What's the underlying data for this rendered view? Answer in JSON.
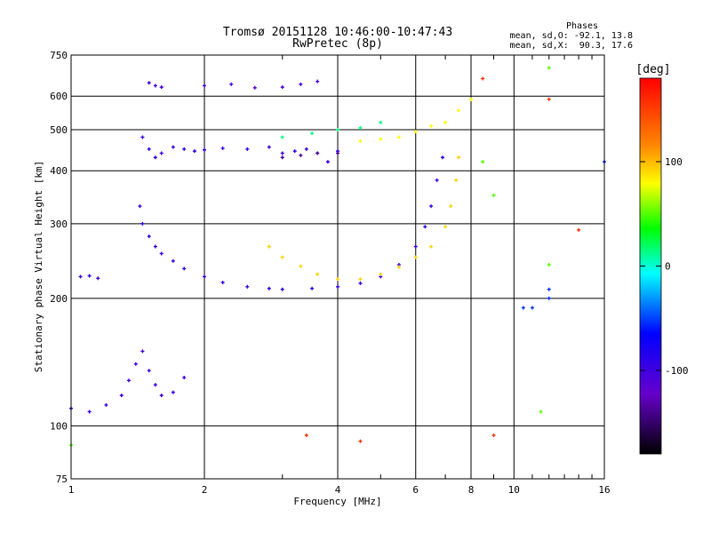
{
  "chart_data": {
    "type": "scatter",
    "title": "Tromsø 20151128 10:46:00-10:47:43",
    "subtitle": "RwPretec (8p)",
    "xlabel": "Frequency [MHz]",
    "ylabel": "Stationary phase Virtual Height [km]",
    "x_scale": "log",
    "y_scale": "log",
    "xlim": [
      1,
      16
    ],
    "ylim": [
      75,
      750
    ],
    "x_ticks": [
      1,
      2,
      4,
      6,
      8,
      10,
      16
    ],
    "x_tick_labels": [
      "1",
      "2",
      "4",
      "6",
      "8",
      "10",
      "16"
    ],
    "y_ticks": [
      75,
      100,
      200,
      300,
      400,
      500,
      600,
      750
    ],
    "y_tick_labels": [
      "75",
      "100",
      "200",
      "300",
      "400",
      "500",
      "600",
      "750"
    ],
    "grid": true,
    "phase_stats": {
      "heading": "Phases",
      "line_o": "mean, sd,O: -92.1, 13.8",
      "line_x": "mean, sd,X:  90.3, 17.6"
    },
    "colorbar": {
      "label": "[deg]",
      "range": [
        -180,
        180
      ],
      "ticks": [
        100,
        0,
        -100
      ],
      "tick_labels": [
        "100",
        "0",
        "-100"
      ]
    },
    "series": [
      {
        "phase": -100,
        "points": [
          [
            1.45,
            480
          ],
          [
            1.5,
            450
          ],
          [
            1.55,
            430
          ],
          [
            1.6,
            440
          ],
          [
            1.7,
            455
          ],
          [
            1.8,
            450
          ],
          [
            1.9,
            445
          ],
          [
            2.0,
            448
          ],
          [
            2.2,
            452
          ],
          [
            2.5,
            450
          ],
          [
            2.8,
            455
          ],
          [
            3.0,
            440
          ],
          [
            3.2,
            445
          ],
          [
            3.4,
            450
          ],
          [
            3.6,
            440
          ],
          [
            3.8,
            420
          ],
          [
            4.0,
            445
          ]
        ]
      },
      {
        "phase": -100,
        "points": [
          [
            1.43,
            330
          ],
          [
            1.45,
            300
          ],
          [
            1.5,
            280
          ],
          [
            1.55,
            265
          ],
          [
            1.6,
            255
          ],
          [
            1.7,
            245
          ],
          [
            1.8,
            235
          ],
          [
            2.0,
            225
          ],
          [
            2.2,
            218
          ],
          [
            2.5,
            213
          ],
          [
            2.8,
            211
          ],
          [
            3.0,
            210
          ],
          [
            3.5,
            211
          ],
          [
            4.0,
            213
          ],
          [
            4.5,
            217
          ],
          [
            5.0,
            225
          ],
          [
            5.5,
            240
          ],
          [
            6.0,
            265
          ],
          [
            6.3,
            295
          ],
          [
            6.5,
            330
          ],
          [
            6.7,
            380
          ],
          [
            6.9,
            430
          ]
        ]
      },
      {
        "phase": -105,
        "points": [
          [
            1.0,
            110
          ],
          [
            1.1,
            108
          ],
          [
            1.2,
            112
          ],
          [
            1.3,
            118
          ],
          [
            1.35,
            128
          ],
          [
            1.4,
            140
          ],
          [
            1.45,
            150
          ],
          [
            1.5,
            135
          ],
          [
            1.55,
            125
          ],
          [
            1.6,
            118
          ],
          [
            1.7,
            120
          ],
          [
            1.8,
            130
          ],
          [
            1.05,
            225
          ],
          [
            1.1,
            226
          ],
          [
            1.15,
            223
          ]
        ]
      },
      {
        "phase": -110,
        "points": [
          [
            1.5,
            645
          ],
          [
            1.55,
            635
          ],
          [
            1.6,
            630
          ],
          [
            2.0,
            635
          ],
          [
            2.3,
            640
          ],
          [
            2.6,
            628
          ],
          [
            3.0,
            630
          ],
          [
            3.3,
            640
          ],
          [
            3.6,
            650
          ]
        ]
      },
      {
        "phase": -140,
        "points": [
          [
            3.0,
            430
          ],
          [
            3.3,
            435
          ],
          [
            3.6,
            440
          ],
          [
            4.0,
            440
          ]
        ]
      },
      {
        "phase": 110,
        "points": [
          [
            2.8,
            265
          ],
          [
            3.0,
            250
          ],
          [
            3.3,
            238
          ],
          [
            3.6,
            228
          ],
          [
            4.0,
            222
          ],
          [
            4.5,
            222
          ],
          [
            5.0,
            228
          ],
          [
            5.5,
            237
          ],
          [
            6.0,
            250
          ],
          [
            6.5,
            265
          ],
          [
            7.0,
            295
          ],
          [
            7.2,
            330
          ],
          [
            7.4,
            380
          ],
          [
            7.5,
            430
          ]
        ]
      },
      {
        "phase": 100,
        "points": [
          [
            4.5,
            470
          ],
          [
            5.0,
            475
          ],
          [
            5.5,
            480
          ],
          [
            6.0,
            495
          ],
          [
            6.5,
            510
          ],
          [
            7.0,
            520
          ],
          [
            7.5,
            555
          ],
          [
            8.0,
            590
          ]
        ]
      },
      {
        "phase": 20,
        "points": [
          [
            3.0,
            480
          ],
          [
            3.5,
            490
          ],
          [
            4.0,
            500
          ],
          [
            4.5,
            505
          ],
          [
            5.0,
            520
          ]
        ]
      },
      {
        "phase": 160,
        "points": [
          [
            3.4,
            95
          ],
          [
            4.5,
            92
          ],
          [
            8.5,
            660
          ],
          [
            9.0,
            95
          ],
          [
            12.0,
            590
          ],
          [
            14.0,
            290
          ]
        ]
      },
      {
        "phase": -60,
        "points": [
          [
            10.5,
            190
          ],
          [
            11.0,
            190
          ],
          [
            12.0,
            200
          ],
          [
            12.0,
            210
          ],
          [
            16.0,
            420
          ]
        ]
      },
      {
        "phase": 60,
        "points": [
          [
            1.0,
            90
          ],
          [
            9.0,
            350
          ],
          [
            12.0,
            240
          ],
          [
            11.5,
            108
          ],
          [
            8.5,
            420
          ],
          [
            12.0,
            700
          ]
        ]
      }
    ]
  }
}
